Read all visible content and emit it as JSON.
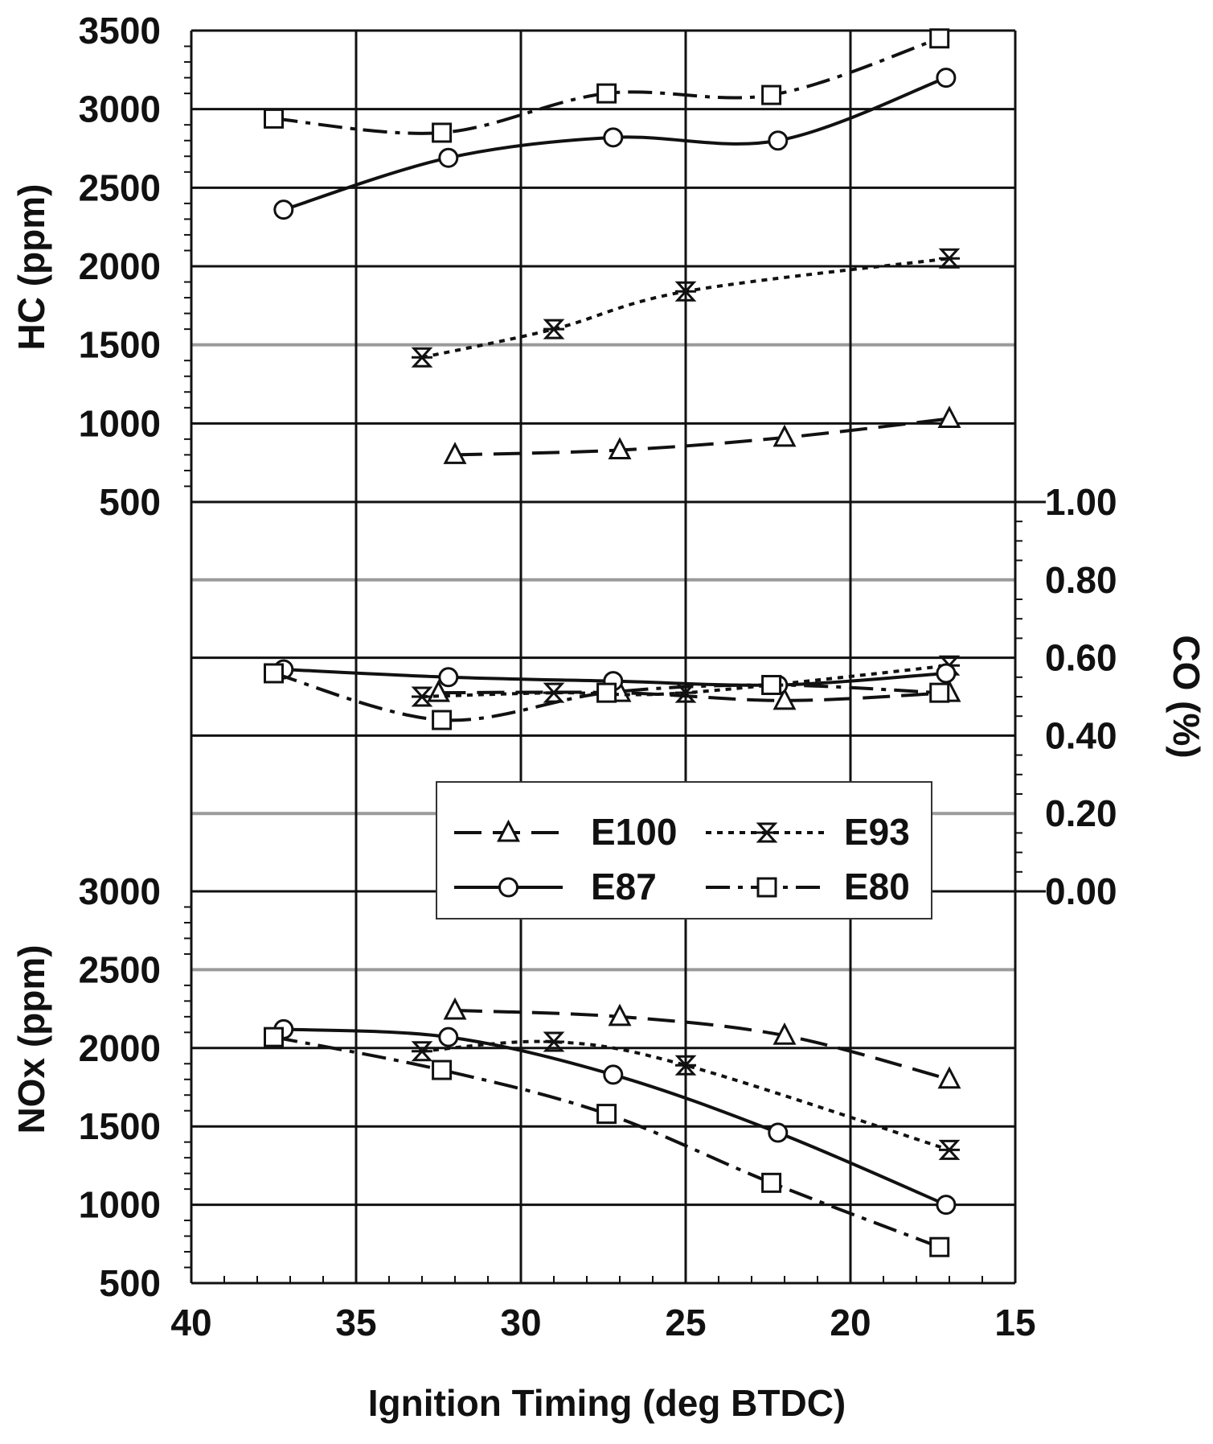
{
  "chart_data": {
    "type": "line",
    "x_axis": {
      "label": "Ignition Timing (deg BTDC)",
      "range": [
        40,
        15
      ],
      "ticks": [
        "40",
        "35",
        "30",
        "25",
        "20",
        "15"
      ]
    },
    "panels": {
      "hc": {
        "ylabel": "HC (ppm)",
        "ylim": [
          500,
          3500
        ],
        "ticks": [
          "3500",
          "3000",
          "2500",
          "2000",
          "1500",
          "1000",
          "500"
        ],
        "series": [
          {
            "name": "E100",
            "style": "long-dash",
            "marker": "triangle",
            "x": [
              32,
              27,
              22,
              17
            ],
            "y": [
              800,
              830,
              910,
              1030
            ]
          },
          {
            "name": "E93",
            "style": "dotted",
            "marker": "star",
            "x": [
              33,
              29,
              25,
              17
            ],
            "y": [
              1420,
              1600,
              1840,
              2050
            ]
          },
          {
            "name": "E87",
            "style": "solid",
            "marker": "circle",
            "x": [
              37.2,
              32.2,
              27.2,
              22.2,
              17.1
            ],
            "y": [
              2360,
              2690,
              2820,
              2800,
              3200
            ]
          },
          {
            "name": "E80",
            "style": "dash-dot",
            "marker": "square",
            "x": [
              37.5,
              32.4,
              27.4,
              22.4,
              17.3
            ],
            "y": [
              2940,
              2850,
              3100,
              3090,
              3450
            ]
          }
        ]
      },
      "co": {
        "ylabel": "CO (%)",
        "ylim": [
          0,
          1
        ],
        "ticks": [
          "1.00",
          "0.80",
          "0.60",
          "0.40",
          "0.20",
          "0.00"
        ],
        "series": [
          {
            "name": "E100",
            "style": "long-dash",
            "marker": "triangle",
            "x": [
              32.5,
              27,
              22,
              17
            ],
            "y": [
              0.51,
              0.51,
              0.49,
              0.51
            ]
          },
          {
            "name": "E93",
            "style": "dotted",
            "marker": "star",
            "x": [
              33,
              29,
              25,
              17
            ],
            "y": [
              0.5,
              0.51,
              0.51,
              0.58
            ]
          },
          {
            "name": "E87",
            "style": "solid",
            "marker": "circle",
            "x": [
              37.2,
              32.2,
              27.2,
              22.2,
              17.1
            ],
            "y": [
              0.57,
              0.55,
              0.54,
              0.53,
              0.56
            ]
          },
          {
            "name": "E80",
            "style": "dash-dot",
            "marker": "square",
            "x": [
              37.5,
              32.4,
              27.4,
              22.4,
              17.3
            ],
            "y": [
              0.56,
              0.44,
              0.51,
              0.53,
              0.51
            ]
          }
        ]
      },
      "nox": {
        "ylabel": "NOx (ppm)",
        "ylim": [
          500,
          3000
        ],
        "ticks": [
          "3000",
          "2500",
          "2000",
          "1500",
          "1000",
          "500"
        ],
        "series": [
          {
            "name": "E100",
            "style": "long-dash",
            "marker": "triangle",
            "x": [
              32,
              27,
              22,
              17
            ],
            "y": [
              2240,
              2200,
              2080,
              1800
            ]
          },
          {
            "name": "E93",
            "style": "dotted",
            "marker": "star",
            "x": [
              33,
              29,
              25,
              17
            ],
            "y": [
              1980,
              2040,
              1890,
              1350
            ]
          },
          {
            "name": "E87",
            "style": "solid",
            "marker": "circle",
            "x": [
              37.2,
              32.2,
              27.2,
              22.2,
              17.1
            ],
            "y": [
              2120,
              2070,
              1830,
              1460,
              1000
            ]
          },
          {
            "name": "E80",
            "style": "dash-dot",
            "marker": "square",
            "x": [
              37.5,
              32.4,
              27.4,
              22.4,
              17.3
            ],
            "y": [
              2070,
              1860,
              1580,
              1140,
              730
            ]
          }
        ]
      }
    },
    "legend": {
      "placement": "center-bottom",
      "entries": [
        {
          "name": "E100",
          "style": "long-dash",
          "marker": "triangle"
        },
        {
          "name": "E93",
          "style": "dotted",
          "marker": "star"
        },
        {
          "name": "E87",
          "style": "solid",
          "marker": "circle"
        },
        {
          "name": "E80",
          "style": "dash-dot",
          "marker": "square"
        }
      ]
    },
    "grid": true,
    "colors": {
      "line": "#111111",
      "grid": "#111111",
      "marker_fill": "#ffffff"
    }
  }
}
